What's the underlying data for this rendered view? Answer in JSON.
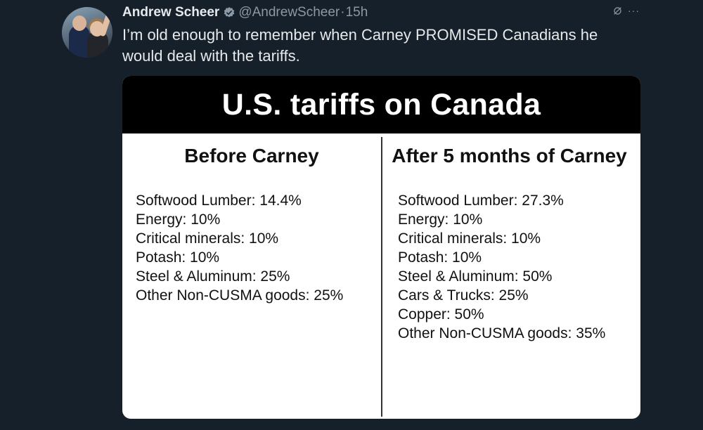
{
  "tweet": {
    "author_name": "Andrew Scheer",
    "handle": "@AndrewScheer",
    "separator": "·",
    "time": "15h",
    "text": "I’m old enough to remember when Carney PROMISED Canadians he would deal with the tariffs.",
    "verified_color": "#8b98a5",
    "icons": [
      "verified-badge-icon",
      "grok-icon",
      "more-icon"
    ]
  },
  "image": {
    "title": "U.S. tariffs on Canada",
    "left": {
      "title": "Before Carney",
      "items": [
        "Softwood Lumber: 14.4%",
        "Energy: 10%",
        "Critical minerals: 10%",
        "Potash: 10%",
        "Steel & Aluminum: 25%",
        "Other Non-CUSMA goods: 25%"
      ]
    },
    "right": {
      "title": "After 5 months of Carney",
      "items": [
        "Softwood Lumber: 27.3%",
        "Energy: 10%",
        "Critical minerals: 10%",
        "Potash: 10%",
        "Steel & Aluminum: 50%",
        "Cars & Trucks: 25%",
        "Copper: 50%",
        "Other Non-CUSMA goods: 35%"
      ]
    }
  },
  "colors": {
    "background": "#15202b",
    "banner": "#000000",
    "card": "#ffffff",
    "muted_text": "#8b98a5"
  }
}
